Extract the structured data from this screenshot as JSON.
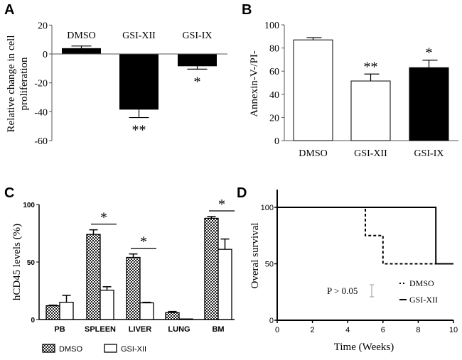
{
  "chart_data": [
    {
      "panel": "A",
      "type": "bar",
      "categories": [
        "DMSO",
        "GSI-XII",
        "GSI-IX"
      ],
      "values": [
        4,
        -38.5,
        -8.5
      ],
      "errors": [
        1.5,
        5.5,
        2
      ],
      "significance": [
        "",
        "**",
        "*"
      ],
      "colors": [
        "#000000",
        "#000000",
        "#000000"
      ],
      "ylabel": [
        "Relative change in cell",
        "proliferation"
      ],
      "ylim": [
        -60,
        20
      ],
      "yticks": [
        "20",
        "0",
        "-20",
        "-40",
        "-60"
      ],
      "ytick_values": [
        20,
        0,
        -20,
        -40,
        -60
      ]
    },
    {
      "panel": "B",
      "type": "bar",
      "categories": [
        "DMSO",
        "GSI-XII",
        "GSI-IX"
      ],
      "values": [
        87,
        51.5,
        63
      ],
      "errors": [
        2,
        6,
        6.5
      ],
      "significance": [
        "",
        "**",
        "*"
      ],
      "colors": [
        "#ffffff",
        "#ffffff",
        "#000000"
      ],
      "ylabel": "Annexin-V-/PI-",
      "ylim": [
        0,
        100
      ],
      "yticks": [
        "0",
        "20",
        "40",
        "60",
        "80",
        "100"
      ],
      "ytick_values": [
        0,
        20,
        40,
        60,
        80,
        100
      ]
    },
    {
      "panel": "C",
      "type": "bar",
      "categories": [
        "PB",
        "SPLEEN",
        "LIVER",
        "LUNG",
        "BM"
      ],
      "series": [
        {
          "name": "DMSO",
          "values": [
            12,
            74,
            54,
            6,
            88
          ],
          "errors": [
            0.5,
            4,
            3,
            1,
            1.5
          ],
          "fill": "checkered"
        },
        {
          "name": "GSI-XII",
          "values": [
            15,
            25.5,
            14.5,
            0.5,
            61
          ],
          "errors": [
            6,
            3,
            0.5,
            0,
            9
          ],
          "fill": "white"
        }
      ],
      "significance": [
        "",
        "*",
        "*",
        "",
        "*"
      ],
      "ylabel": "hCD45 levels (%)",
      "ylim": [
        0,
        100
      ],
      "yticks": [
        "0",
        "50",
        "100"
      ],
      "ytick_values": [
        0,
        50,
        100
      ],
      "legend": "bottom"
    },
    {
      "panel": "D",
      "type": "line",
      "series": [
        {
          "name": "DMSO",
          "style": "dashed",
          "x": [
            0,
            5,
            5,
            6,
            6,
            9
          ],
          "y": [
            100,
            100,
            75,
            75,
            50,
            50
          ]
        },
        {
          "name": "GSI-XII",
          "style": "solid",
          "x": [
            0,
            9,
            9,
            10
          ],
          "y": [
            100,
            100,
            50,
            50
          ]
        }
      ],
      "annotation": "P > 0.05",
      "xlabel": "Time (Weeks)",
      "ylabel": "Overal survival",
      "xlim": [
        0,
        10
      ],
      "ylim": [
        0,
        100
      ],
      "xticks": [
        "0",
        "2",
        "4",
        "6",
        "8",
        "10"
      ],
      "xtick_values": [
        0,
        2,
        4,
        6,
        8,
        10
      ],
      "yticks": [
        "0",
        "50",
        "100"
      ],
      "ytick_values": [
        0,
        50,
        100
      ],
      "legend": "bottom-right"
    }
  ],
  "panel_labels": [
    "A",
    "B",
    "C",
    "D"
  ]
}
